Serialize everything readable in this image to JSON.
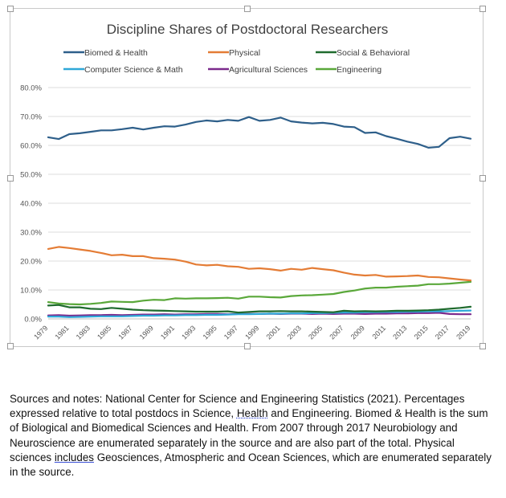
{
  "chart_data": {
    "type": "line",
    "title": "Discipline Shares of Postdoctoral Researchers",
    "xlabel": "",
    "ylabel": "",
    "ylim": [
      0,
      80
    ],
    "yticks": [
      "0.0%",
      "10.0%",
      "20.0%",
      "30.0%",
      "40.0%",
      "50.0%",
      "60.0%",
      "70.0%",
      "80.0%"
    ],
    "grid": true,
    "legend_position": "top",
    "x": [
      1979,
      1980,
      1981,
      1982,
      1983,
      1984,
      1985,
      1986,
      1987,
      1988,
      1989,
      1990,
      1991,
      1992,
      1993,
      1994,
      1995,
      1996,
      1997,
      1998,
      1999,
      2000,
      2001,
      2002,
      2003,
      2004,
      2005,
      2006,
      2007,
      2008,
      2009,
      2010,
      2011,
      2012,
      2013,
      2014,
      2015,
      2016,
      2017,
      2018,
      2019
    ],
    "xticks": [
      "1979",
      "1981",
      "1983",
      "1985",
      "1987",
      "1989",
      "1991",
      "1993",
      "1995",
      "1997",
      "1999",
      "2001",
      "2003",
      "2005",
      "2007",
      "2009",
      "2011",
      "2013",
      "2015",
      "2017",
      "2019"
    ],
    "series": [
      {
        "name": "Biomed & Health",
        "color": "#2e5f8a",
        "values": [
          62.8,
          62.2,
          63.9,
          64.2,
          64.7,
          65.2,
          65.2,
          65.6,
          66.1,
          65.5,
          66.1,
          66.6,
          66.5,
          67.2,
          68.1,
          68.6,
          68.3,
          68.8,
          68.5,
          69.8,
          68.5,
          68.8,
          69.6,
          68.3,
          67.9,
          67.6,
          67.8,
          67.4,
          66.5,
          66.3,
          64.3,
          64.5,
          63.2,
          62.3,
          61.3,
          60.5,
          59.2,
          59.5,
          62.5,
          63.0,
          62.3
        ]
      },
      {
        "name": "Physical",
        "color": "#e47c35",
        "values": [
          24.2,
          24.9,
          24.5,
          24.0,
          23.5,
          22.8,
          22.0,
          22.2,
          21.7,
          21.7,
          21.0,
          20.8,
          20.5,
          19.8,
          18.8,
          18.5,
          18.7,
          18.2,
          18.0,
          17.3,
          17.5,
          17.2,
          16.7,
          17.3,
          17.0,
          17.6,
          17.2,
          16.8,
          16.0,
          15.3,
          15.0,
          15.2,
          14.6,
          14.7,
          14.8,
          15.0,
          14.5,
          14.4,
          14.0,
          13.6,
          13.3
        ]
      },
      {
        "name": "Social & Behavioral",
        "color": "#1f6b2e",
        "values": [
          4.6,
          4.8,
          4.0,
          4.0,
          3.5,
          3.4,
          3.8,
          3.5,
          3.2,
          3.0,
          2.9,
          2.8,
          2.7,
          2.6,
          2.5,
          2.5,
          2.5,
          2.6,
          2.2,
          2.4,
          2.6,
          2.6,
          2.7,
          2.6,
          2.6,
          2.5,
          2.4,
          2.3,
          2.8,
          2.6,
          2.7,
          2.6,
          2.7,
          2.8,
          2.8,
          2.9,
          3.0,
          3.2,
          3.5,
          3.8,
          4.2
        ]
      },
      {
        "name": "Computer Science & Math",
        "color": "#2ea8d8",
        "values": [
          0.8,
          0.8,
          0.6,
          0.7,
          0.8,
          0.9,
          0.9,
          0.9,
          1.0,
          1.1,
          1.1,
          1.2,
          1.2,
          1.3,
          1.3,
          1.4,
          1.4,
          1.5,
          1.6,
          1.6,
          1.7,
          1.8,
          1.8,
          1.9,
          1.9,
          2.0,
          2.0,
          2.1,
          2.2,
          2.2,
          2.3,
          2.3,
          2.4,
          2.4,
          2.5,
          2.5,
          2.6,
          2.6,
          2.7,
          2.8,
          2.9
        ]
      },
      {
        "name": "Agricultural Sciences",
        "color": "#7b2a8c",
        "values": [
          1.2,
          1.3,
          1.1,
          1.2,
          1.3,
          1.3,
          1.4,
          1.3,
          1.4,
          1.5,
          1.5,
          1.6,
          1.5,
          1.6,
          1.6,
          1.7,
          1.7,
          1.6,
          1.7,
          1.7,
          1.7,
          1.8,
          1.7,
          1.8,
          1.8,
          1.7,
          1.8,
          1.7,
          1.8,
          1.8,
          1.7,
          1.8,
          1.8,
          1.9,
          1.9,
          2.0,
          2.0,
          2.1,
          1.7,
          1.6,
          1.6
        ]
      },
      {
        "name": "Engineering",
        "color": "#5aa83a",
        "values": [
          5.8,
          5.3,
          5.1,
          5.0,
          5.2,
          5.5,
          6.0,
          5.9,
          5.8,
          6.3,
          6.6,
          6.5,
          7.1,
          7.0,
          7.1,
          7.1,
          7.2,
          7.3,
          7.0,
          7.7,
          7.7,
          7.5,
          7.4,
          7.9,
          8.1,
          8.2,
          8.4,
          8.6,
          9.3,
          9.8,
          10.5,
          10.8,
          10.8,
          11.1,
          11.3,
          11.5,
          12.0,
          12.0,
          12.2,
          12.5,
          12.8
        ]
      }
    ]
  },
  "notes": {
    "p1": "Sources and notes: National Center for Science and Engineering Statistics (2021).  Percentages expressed relative to total postdocs in Science, ",
    "p_health": "Health",
    "p2": " and Engineering.  Biomed & Health is the sum of Biological and Biomedical Sciences and Health.  From 2007 through 2017 Neurobiology and Neuroscience are enumerated separately in the source and are also part of the total.  Physical sciences ",
    "p_includes": "includes",
    "p3": " Geosciences, Atmospheric and Ocean Sciences, which are enumerated separately in the source."
  }
}
